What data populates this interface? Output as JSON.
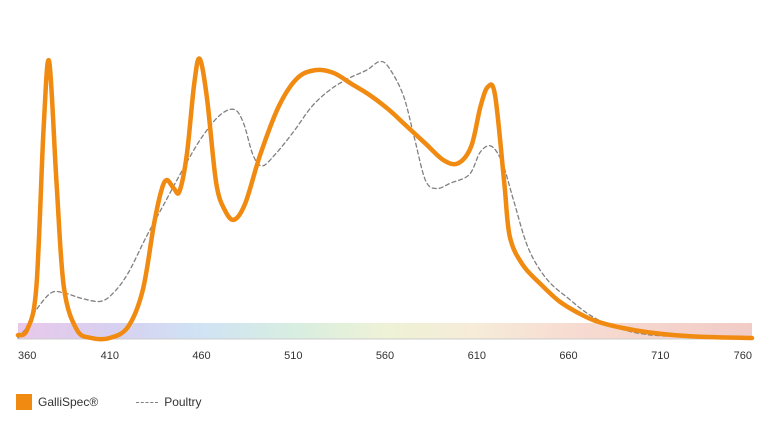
{
  "chart_data": {
    "type": "line",
    "xlim": [
      360,
      760
    ],
    "ylim": [
      0,
      1
    ],
    "x_ticks": [
      360,
      410,
      460,
      510,
      560,
      610,
      660,
      710,
      760
    ],
    "grid": false,
    "legend_position": "bottom-left",
    "background_band": "visible-spectrum gradient",
    "series": [
      {
        "name": "GalliSpec®",
        "color": "#f08a10",
        "style": "solid",
        "points": [
          [
            360,
            0.01
          ],
          [
            365,
            0.03
          ],
          [
            370,
            0.18
          ],
          [
            374,
            0.75
          ],
          [
            377,
            0.98
          ],
          [
            381,
            0.55
          ],
          [
            385,
            0.18
          ],
          [
            392,
            0.03
          ],
          [
            400,
            0.0
          ],
          [
            410,
            0.0
          ],
          [
            420,
            0.04
          ],
          [
            428,
            0.17
          ],
          [
            434,
            0.4
          ],
          [
            438,
            0.52
          ],
          [
            441,
            0.56
          ],
          [
            445,
            0.53
          ],
          [
            448,
            0.52
          ],
          [
            452,
            0.65
          ],
          [
            456,
            0.9
          ],
          [
            459,
            0.99
          ],
          [
            463,
            0.85
          ],
          [
            468,
            0.55
          ],
          [
            473,
            0.45
          ],
          [
            478,
            0.42
          ],
          [
            484,
            0.48
          ],
          [
            492,
            0.65
          ],
          [
            502,
            0.82
          ],
          [
            512,
            0.92
          ],
          [
            522,
            0.95
          ],
          [
            532,
            0.94
          ],
          [
            542,
            0.9
          ],
          [
            552,
            0.86
          ],
          [
            562,
            0.81
          ],
          [
            572,
            0.75
          ],
          [
            582,
            0.69
          ],
          [
            592,
            0.63
          ],
          [
            600,
            0.62
          ],
          [
            607,
            0.68
          ],
          [
            612,
            0.82
          ],
          [
            616,
            0.89
          ],
          [
            620,
            0.86
          ],
          [
            625,
            0.55
          ],
          [
            628,
            0.36
          ],
          [
            635,
            0.26
          ],
          [
            645,
            0.19
          ],
          [
            655,
            0.13
          ],
          [
            665,
            0.09
          ],
          [
            675,
            0.06
          ],
          [
            690,
            0.035
          ],
          [
            710,
            0.015
          ],
          [
            730,
            0.005
          ],
          [
            760,
            0.0
          ]
        ]
      },
      {
        "name": "Poultry",
        "color": "#808080",
        "style": "dashed",
        "points": [
          [
            360,
            0.0
          ],
          [
            365,
            0.04
          ],
          [
            370,
            0.1
          ],
          [
            378,
            0.16
          ],
          [
            385,
            0.16
          ],
          [
            395,
            0.14
          ],
          [
            405,
            0.13
          ],
          [
            412,
            0.16
          ],
          [
            420,
            0.23
          ],
          [
            430,
            0.36
          ],
          [
            440,
            0.48
          ],
          [
            450,
            0.6
          ],
          [
            460,
            0.71
          ],
          [
            470,
            0.79
          ],
          [
            478,
            0.81
          ],
          [
            483,
            0.76
          ],
          [
            488,
            0.65
          ],
          [
            493,
            0.61
          ],
          [
            500,
            0.65
          ],
          [
            510,
            0.73
          ],
          [
            520,
            0.82
          ],
          [
            530,
            0.88
          ],
          [
            540,
            0.92
          ],
          [
            550,
            0.95
          ],
          [
            557,
            0.98
          ],
          [
            562,
            0.96
          ],
          [
            570,
            0.86
          ],
          [
            576,
            0.71
          ],
          [
            582,
            0.56
          ],
          [
            588,
            0.53
          ],
          [
            596,
            0.55
          ],
          [
            606,
            0.58
          ],
          [
            612,
            0.66
          ],
          [
            618,
            0.68
          ],
          [
            624,
            0.62
          ],
          [
            630,
            0.49
          ],
          [
            638,
            0.32
          ],
          [
            648,
            0.21
          ],
          [
            660,
            0.14
          ],
          [
            672,
            0.08
          ],
          [
            685,
            0.04
          ],
          [
            700,
            0.015
          ],
          [
            720,
            0.005
          ],
          [
            760,
            0.0
          ]
        ]
      }
    ]
  },
  "legend": {
    "items": [
      {
        "label": "GalliSpec®",
        "swatch": "solid"
      },
      {
        "label": "Poultry",
        "swatch": "dashed"
      }
    ]
  }
}
